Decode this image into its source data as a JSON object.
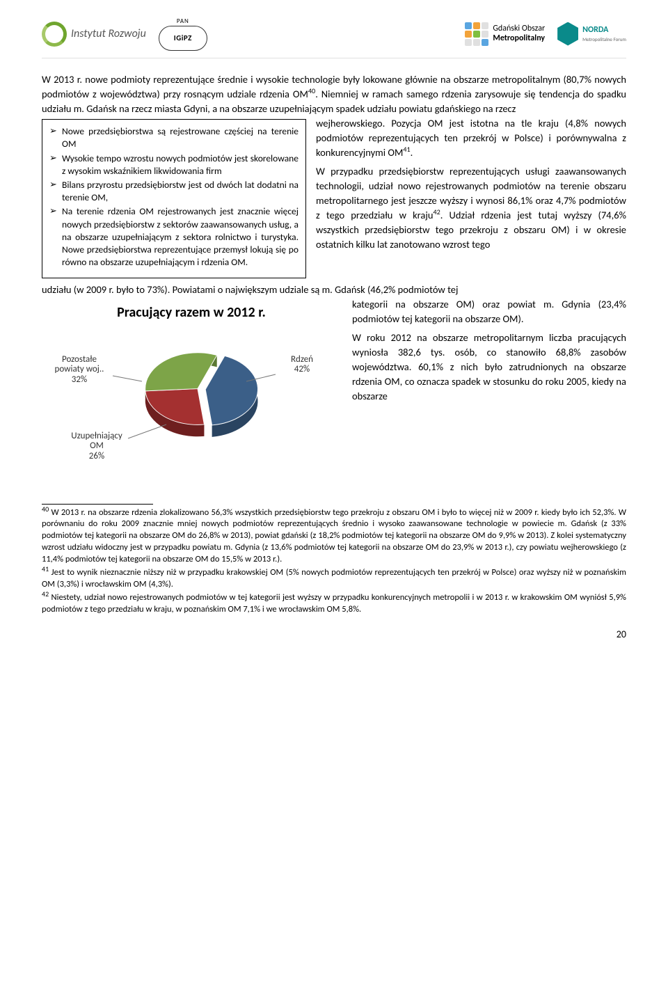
{
  "header": {
    "logo1_text": "Instytut Rozwoju",
    "logo2_text": "IGiPZ",
    "logo2_top": "PAN",
    "logo3_line1": "Gdański Obszar",
    "logo3_line2": "Metropolitalny",
    "logo4_text": "NORDA",
    "logo4_sub": "Metropolitalne Forum",
    "gom_colors": [
      "#5aa5e0",
      "#f2a33a",
      "#e0e0e0",
      "#f2a33a",
      "#7fbf3f",
      "#e0e0e0",
      "#e0e0e0",
      "#e0e0e0",
      "#5aa5e0"
    ]
  },
  "intro": {
    "p1a": "W 2013 r. nowe podmioty reprezentujące średnie i wysokie technologie były lokowane głównie na obszarze metropolitalnym (80,7% nowych podmiotów z województwa) przy rosnącym udziale rdzenia OM",
    "p1b": ". Niemniej w ramach samego rdzenia zarysowuje się tendencja do spadku udziału m. Gdańsk na rzecz miasta Gdyni, a na obszarze uzupełniającym spadek udziału powiatu gdańskiego na rzecz ",
    "sup1": "40"
  },
  "callout": {
    "items": [
      "Nowe przedsiębiorstwa są rejestrowane częściej na terenie OM",
      "Wysokie tempo wzrostu nowych podmiotów jest skorelowane z wysokim wskaźnikiem likwidowania firm",
      "Bilans przyrostu przedsiębiorstw jest od dwóch lat dodatni na terenie OM,",
      "Na terenie rdzenia OM rejestrowanych jest znacznie więcej nowych przedsiębiorstw z sektorów zaawansowanych usług, a na obszarze uzupełniającym z sektora rolnictwo i turystyka. Nowe przedsiębiorstwa reprezentujące przemysł lokują się po równo na obszarze uzupełniającym i rdzenia OM."
    ]
  },
  "rightcol": {
    "p2a": "wejherowskiego. Pozycja OM jest istotna na tle kraju (4,8% nowych podmiotów reprezentujących ten przekrój w Polsce) i porównywalna z konkurencyjnymi OM",
    "sup2": "41",
    "p2b": ".",
    "p3a": "W przypadku przedsiębiorstw reprezentujących usługi zaawansowanych technologii, udział nowo rejestrowanych podmiotów na terenie obszaru metropolitarnego jest jeszcze wyższy i wynosi 86,1% oraz 4,7% podmiotów z tego przedziału w kraju",
    "sup3": "42",
    "p3b": ". Udział rdzenia jest tutaj wyższy (74,6% wszystkich przedsiębiorstw tego przekroju z obszaru OM) i w okresie ostatnich kilku lat zanotowano wzrost tego "
  },
  "bridge": "udziału (w 2009 r. było to 73%). Powiatami o największym udziale są m. Gdańsk (46,2% podmiotów tej ",
  "rightcol2": {
    "p4": "kategorii na obszarze OM) oraz powiat m. Gdynia (23,4% podmiotów tej kategorii na obszarze OM).",
    "p5": "W roku 2012 na obszarze metropolitarnym liczba pracujących wyniosła 382,6 tys. osób, co stanowiło 68,8% zasobów województwa. 60,1% z nich było zatrudnionych na obszarze rdzenia OM, co oznacza spadek w stosunku do roku 2005, kiedy na obszarze "
  },
  "chart": {
    "title": "Pracujący razem w 2012 r.",
    "labels": {
      "rdzen": "Rdzeń\n42%",
      "uzup": "Uzupełniający\nOM\n26%",
      "pozost": "Pozostałe\npowiaty woj..\n32%"
    },
    "slices": [
      {
        "name": "Rdzeń",
        "value": 42,
        "color": "#3b5f88",
        "shadow": "#2a4461"
      },
      {
        "name": "Uzupełniający OM",
        "value": 26,
        "color": "#a43030",
        "shadow": "#6e1f1f"
      },
      {
        "name": "Pozostałe powiaty woj.",
        "value": 32,
        "color": "#7da448",
        "shadow": "#5a7833"
      }
    ],
    "label_color": "#333333",
    "title_color": "#000000",
    "label_fontsize": 13,
    "title_fontsize": 20
  },
  "footnotes": {
    "f40_num": "40",
    "f40": " W 2013 r. na obszarze rdzenia zlokalizowano 56,3% wszystkich przedsiębiorstw tego przekroju z obszaru OM i było to więcej niż w 2009 r. kiedy było ich 52,3%. W porównaniu do roku 2009 znacznie mniej nowych podmiotów reprezentujących średnio i wysoko zaawansowane technologie w powiecie m. Gdańsk (z 33% podmiotów tej kategorii na obszarze OM do 26,8% w 2013), powiat gdański (z 18,2% podmiotów tej kategorii na obszarze OM do 9,9% w 2013). Z kolei systematyczny wzrost udziału widoczny jest w przypadku powiatu m. Gdynia (z 13,6% podmiotów tej kategorii na obszarze OM do 23,9% w 2013 r.), czy powiatu wejherowskiego (z 11,4% podmiotów tej kategorii na obszarze OM do 15,5% w 2013 r.).",
    "f41_num": "41",
    "f41": " Jest to wynik nieznacznie niższy niż w przypadku krakowskiej OM (5% nowych podmiotów reprezentujących ten przekrój w Polsce) oraz wyższy niż w poznańskim OM (3,3%) i wrocławskim OM (4,3%).",
    "f42_num": "42",
    "f42": " Niestety, udział nowo rejestrowanych podmiotów w tej kategorii jest wyższy w przypadku konkurencyjnych metropolii i w 2013 r. w krakowskim OM wyniósł 5,9% podmiotów z tego przedziału w kraju, w poznańskim OM 7,1% i we wrocławskim OM 5,8%."
  },
  "page_number": "20"
}
